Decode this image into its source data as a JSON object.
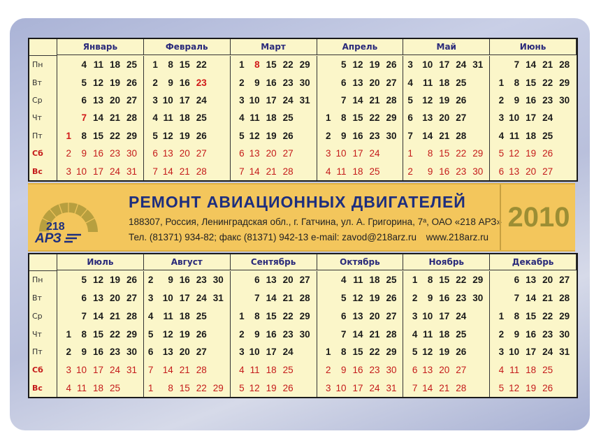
{
  "weekdays": [
    "Пн",
    "Вт",
    "Ср",
    "Чт",
    "Пт",
    "Сб",
    "Вс"
  ],
  "colors": {
    "weekend": "#c41a1a",
    "month_title": "#2a2a7a",
    "banner": "#f3c65c",
    "brand_blue": "#1d2e7e",
    "year": "#9c8e34"
  },
  "holidays": [
    "0:1",
    "0:7",
    "1:23",
    "2:8"
  ],
  "months": [
    {
      "name": "Январь",
      "rows": [
        [
          "",
          "4",
          "11",
          "18",
          "25"
        ],
        [
          "",
          "5",
          "12",
          "19",
          "26"
        ],
        [
          "",
          "6",
          "13",
          "20",
          "27"
        ],
        [
          "",
          "7",
          "14",
          "21",
          "28"
        ],
        [
          "1",
          "8",
          "15",
          "22",
          "29"
        ],
        [
          "2",
          "9",
          "16",
          "23",
          "30"
        ],
        [
          "3",
          "10",
          "17",
          "24",
          "31"
        ]
      ]
    },
    {
      "name": "Февраль",
      "rows": [
        [
          "1",
          "8",
          "15",
          "22",
          ""
        ],
        [
          "2",
          "9",
          "16",
          "23",
          ""
        ],
        [
          "3",
          "10",
          "17",
          "24",
          ""
        ],
        [
          "4",
          "11",
          "18",
          "25",
          ""
        ],
        [
          "5",
          "12",
          "19",
          "26",
          ""
        ],
        [
          "6",
          "13",
          "20",
          "27",
          ""
        ],
        [
          "7",
          "14",
          "21",
          "28",
          ""
        ]
      ]
    },
    {
      "name": "Март",
      "rows": [
        [
          "1",
          "8",
          "15",
          "22",
          "29"
        ],
        [
          "2",
          "9",
          "16",
          "23",
          "30"
        ],
        [
          "3",
          "10",
          "17",
          "24",
          "31"
        ],
        [
          "4",
          "11",
          "18",
          "25",
          ""
        ],
        [
          "5",
          "12",
          "19",
          "26",
          ""
        ],
        [
          "6",
          "13",
          "20",
          "27",
          ""
        ],
        [
          "7",
          "14",
          "21",
          "28",
          ""
        ]
      ]
    },
    {
      "name": "Апрель",
      "rows": [
        [
          "",
          "5",
          "12",
          "19",
          "26"
        ],
        [
          "",
          "6",
          "13",
          "20",
          "27"
        ],
        [
          "",
          "7",
          "14",
          "21",
          "28"
        ],
        [
          "1",
          "8",
          "15",
          "22",
          "29"
        ],
        [
          "2",
          "9",
          "16",
          "23",
          "30"
        ],
        [
          "3",
          "10",
          "17",
          "24",
          ""
        ],
        [
          "4",
          "11",
          "18",
          "25",
          ""
        ]
      ]
    },
    {
      "name": "Май",
      "rows": [
        [
          "3",
          "10",
          "17",
          "24",
          "31"
        ],
        [
          "4",
          "11",
          "18",
          "25",
          ""
        ],
        [
          "5",
          "12",
          "19",
          "26",
          ""
        ],
        [
          "6",
          "13",
          "20",
          "27",
          ""
        ],
        [
          "7",
          "14",
          "21",
          "28",
          ""
        ],
        [
          "1",
          "8",
          "15",
          "22",
          "29"
        ],
        [
          "2",
          "9",
          "16",
          "23",
          "30"
        ]
      ]
    },
    {
      "name": "Июнь",
      "rows": [
        [
          "",
          "7",
          "14",
          "21",
          "28"
        ],
        [
          "1",
          "8",
          "15",
          "22",
          "29"
        ],
        [
          "2",
          "9",
          "16",
          "23",
          "30"
        ],
        [
          "3",
          "10",
          "17",
          "24",
          ""
        ],
        [
          "4",
          "11",
          "18",
          "25",
          ""
        ],
        [
          "5",
          "12",
          "19",
          "26",
          ""
        ],
        [
          "6",
          "13",
          "20",
          "27",
          ""
        ]
      ]
    },
    {
      "name": "Июль",
      "rows": [
        [
          "",
          "5",
          "12",
          "19",
          "26"
        ],
        [
          "",
          "6",
          "13",
          "20",
          "27"
        ],
        [
          "",
          "7",
          "14",
          "21",
          "28"
        ],
        [
          "1",
          "8",
          "15",
          "22",
          "29"
        ],
        [
          "2",
          "9",
          "16",
          "23",
          "30"
        ],
        [
          "3",
          "10",
          "17",
          "24",
          "31"
        ],
        [
          "4",
          "11",
          "18",
          "25",
          ""
        ]
      ]
    },
    {
      "name": "Август",
      "rows": [
        [
          "2",
          "9",
          "16",
          "23",
          "30"
        ],
        [
          "3",
          "10",
          "17",
          "24",
          "31"
        ],
        [
          "4",
          "11",
          "18",
          "25",
          ""
        ],
        [
          "5",
          "12",
          "19",
          "26",
          ""
        ],
        [
          "6",
          "13",
          "20",
          "27",
          ""
        ],
        [
          "7",
          "14",
          "21",
          "28",
          ""
        ],
        [
          "1",
          "8",
          "15",
          "22",
          "29"
        ]
      ]
    },
    {
      "name": "Сентябрь",
      "rows": [
        [
          "",
          "6",
          "13",
          "20",
          "27"
        ],
        [
          "",
          "7",
          "14",
          "21",
          "28"
        ],
        [
          "1",
          "8",
          "15",
          "22",
          "29"
        ],
        [
          "2",
          "9",
          "16",
          "23",
          "30"
        ],
        [
          "3",
          "10",
          "17",
          "24",
          ""
        ],
        [
          "4",
          "11",
          "18",
          "25",
          ""
        ],
        [
          "5",
          "12",
          "19",
          "26",
          ""
        ]
      ]
    },
    {
      "name": "Октябрь",
      "rows": [
        [
          "",
          "4",
          "11",
          "18",
          "25"
        ],
        [
          "",
          "5",
          "12",
          "19",
          "26"
        ],
        [
          "",
          "6",
          "13",
          "20",
          "27"
        ],
        [
          "",
          "7",
          "14",
          "21",
          "28"
        ],
        [
          "1",
          "8",
          "15",
          "22",
          "29"
        ],
        [
          "2",
          "9",
          "16",
          "23",
          "30"
        ],
        [
          "3",
          "10",
          "17",
          "24",
          "31"
        ]
      ]
    },
    {
      "name": "Ноябрь",
      "rows": [
        [
          "1",
          "8",
          "15",
          "22",
          "29"
        ],
        [
          "2",
          "9",
          "16",
          "23",
          "30"
        ],
        [
          "3",
          "10",
          "17",
          "24",
          ""
        ],
        [
          "4",
          "11",
          "18",
          "25",
          ""
        ],
        [
          "5",
          "12",
          "19",
          "26",
          ""
        ],
        [
          "6",
          "13",
          "20",
          "27",
          ""
        ],
        [
          "7",
          "14",
          "21",
          "28",
          ""
        ]
      ]
    },
    {
      "name": "Декабрь",
      "rows": [
        [
          "",
          "6",
          "13",
          "20",
          "27"
        ],
        [
          "",
          "7",
          "14",
          "21",
          "28"
        ],
        [
          "1",
          "8",
          "15",
          "22",
          "29"
        ],
        [
          "2",
          "9",
          "16",
          "23",
          "30"
        ],
        [
          "3",
          "10",
          "17",
          "24",
          "31"
        ],
        [
          "4",
          "11",
          "18",
          "25",
          ""
        ],
        [
          "5",
          "12",
          "19",
          "26",
          ""
        ]
      ]
    }
  ],
  "banner": {
    "logo": {
      "number": "218",
      "letters": "АРЗ"
    },
    "title": "РЕМОНТ АВИАЦИОННЫХ ДВИГАТЕЛЕЙ",
    "address": "188307, Россия, Ленинградская обл., г. Гатчина, ул. А. Григорина, 7ᵃ, ОАО «218 АРЗ»",
    "phone": "Тел. (81371) 934-82; факс (81371) 942-13 e-mail: zavod@218arz.ru",
    "website": "www.218arz.ru",
    "year": "2010"
  }
}
